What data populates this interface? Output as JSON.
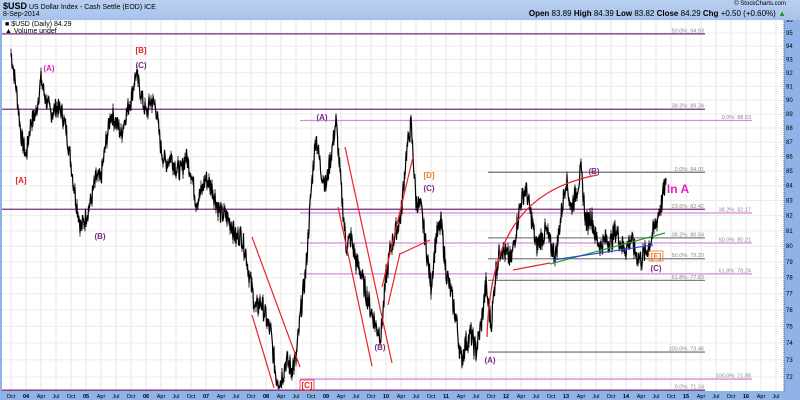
{
  "header": {
    "symbol": "$USD",
    "name": "US Dollar Index - Cash Settle (EOD) ICE",
    "date": "8-Sep-2014",
    "copyright": "© StockCharts.com",
    "open_label": "Open",
    "open": "83.89",
    "high_label": "High",
    "high": "84.39",
    "low_label": "Low",
    "low": "83.82",
    "close_label": "Close",
    "close": "84.29",
    "chg_label": "Chg",
    "chg": "+0.50 (+0.60%)",
    "chg_arrow": "▲"
  },
  "legend": {
    "series": "$USD (Daily) 84.29",
    "volume": "Volume undef"
  },
  "chart_data": {
    "type": "line",
    "scale": "log",
    "ylim": [
      71,
      96.5
    ],
    "grid": true,
    "y_ticks": [
      72,
      73,
      74,
      75,
      76,
      77,
      78,
      79,
      80,
      81,
      82,
      83,
      84,
      85,
      86,
      87,
      88,
      89,
      90,
      91,
      92,
      93,
      94,
      95,
      96
    ],
    "x_ticks": [
      "Oct",
      "04",
      "Apr",
      "Jul",
      "Oct",
      "05",
      "Apr",
      "Jul",
      "Oct",
      "06",
      "Apr",
      "Jul",
      "Oct",
      "07",
      "Apr",
      "Jul",
      "Oct",
      "08",
      "Apr",
      "Jul",
      "Oct",
      "09",
      "Apr",
      "Jul",
      "Oct",
      "10",
      "Apr",
      "Jul",
      "Oct",
      "11",
      "Apr",
      "Jul",
      "Oct",
      "12",
      "Apr",
      "Jul",
      "Oct",
      "13",
      "Apr",
      "Jul",
      "Oct",
      "14",
      "Apr",
      "Jul",
      "Oct",
      "15",
      "Apr",
      "Jul",
      "Oct",
      "16",
      "Apr",
      "Jul"
    ],
    "start_month": "2003-10",
    "monthly_close": [
      93.5,
      91.0,
      87.5,
      86.0,
      88.5,
      89.0,
      91.5,
      90.0,
      89.0,
      89.5,
      89.3,
      88.0,
      85.5,
      83.0,
      81.2,
      82.0,
      83.0,
      84.5,
      84.5,
      87.0,
      89.0,
      88.5,
      87.5,
      89.0,
      90.0,
      92.0,
      90.5,
      89.0,
      90.0,
      89.5,
      86.5,
      85.5,
      86.0,
      85.2,
      85.0,
      86.0,
      85.0,
      83.0,
      83.5,
      84.5,
      84.0,
      83.0,
      82.0,
      82.0,
      81.5,
      80.5,
      80.8,
      79.5,
      77.5,
      76.0,
      76.5,
      75.5,
      74.5,
      72.0,
      71.8,
      73.0,
      72.5,
      73.0,
      76.0,
      78.5,
      83.5,
      87.5,
      85.0,
      84.0,
      86.0,
      88.5,
      84.0,
      80.0,
      80.5,
      79.0,
      78.3,
      77.0,
      76.0,
      75.0,
      74.5,
      78.0,
      80.0,
      81.0,
      82.0,
      86.0,
      88.3,
      83.0,
      82.5,
      80.0,
      77.5,
      80.5,
      81.5,
      78.5,
      77.0,
      75.5,
      73.0,
      74.0,
      74.5,
      73.5,
      75.0,
      77.5,
      75.0,
      78.5,
      80.0,
      79.5,
      79.0,
      81.0,
      83.0,
      83.8,
      82.0,
      80.0,
      80.5,
      81.0,
      80.0,
      79.5,
      82.0,
      84.5,
      82.5,
      83.5,
      85.0,
      81.5,
      82.0,
      80.5,
      80.0,
      80.5,
      80.3,
      81.0,
      80.2,
      79.8,
      80.5,
      79.5,
      79.2,
      79.6,
      80.4,
      81.5,
      82.7,
      84.29
    ],
    "fib_levels": [
      {
        "label": "50.0%: 94.93",
        "value": 94.93,
        "set": "long"
      },
      {
        "label": "38.2%: 89.34",
        "value": 89.34,
        "set": "long"
      },
      {
        "label": "23.6%: 82.42",
        "value": 82.42,
        "set": "long"
      },
      {
        "label": "0.0%: 71.24",
        "value": 71.24,
        "set": "long"
      },
      {
        "label": "0.0%: 88.53",
        "value": 88.53,
        "set": "mid"
      },
      {
        "label": "38.2%: 82.17",
        "value": 82.17,
        "set": "mid"
      },
      {
        "label": "50.0%: 80.21",
        "value": 80.21,
        "set": "mid"
      },
      {
        "label": "61.8%: 78.24",
        "value": 78.24,
        "set": "mid"
      },
      {
        "label": "100.0%: 71.88",
        "value": 71.88,
        "set": "mid"
      },
      {
        "label": "0.0%: 84.91",
        "value": 84.91,
        "set": "short"
      },
      {
        "label": "38.2%: 80.54",
        "value": 80.54,
        "set": "short"
      },
      {
        "label": "50.0%: 79.20",
        "value": 79.2,
        "set": "short"
      },
      {
        "label": "61.8%: 77.83",
        "value": 77.83,
        "set": "short"
      },
      {
        "label": "100.0%: 73.46",
        "value": 73.46,
        "set": "short"
      }
    ],
    "fib_colors": {
      "long": "#7a2a7a",
      "mid": "#d88ad8",
      "short": "#808080"
    },
    "wave_labels": [
      "[A]",
      "(A)",
      "[B]",
      "(C)",
      "(B)",
      "[C]",
      "(A)",
      "(B)",
      "[D]",
      "(C)",
      "(A)",
      "(B)",
      "[E]",
      "(C)",
      "In A"
    ],
    "colors": {
      "price": "#000000",
      "red": "#e8242a",
      "purple": "#7a2a86",
      "orange": "#f07a28",
      "magenta": "#e020c0",
      "green": "#2a9a2a",
      "blue": "#2a4ad8",
      "axis_bg": "#8fb3e6"
    }
  }
}
